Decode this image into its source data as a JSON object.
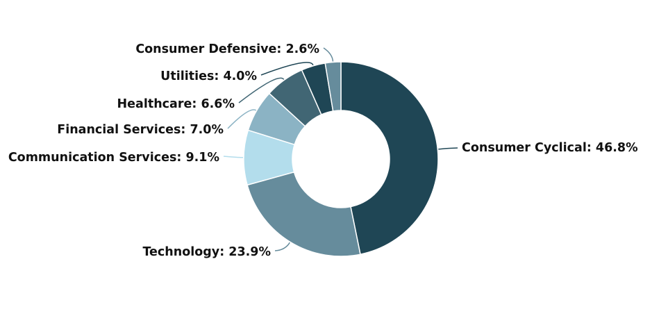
{
  "chart_data": {
    "type": "pie",
    "donut": true,
    "start_angle": "12 o'clock",
    "direction": "clockwise",
    "slices": [
      {
        "label": "Consumer Cyclical",
        "value": 46.8,
        "text": "Consumer Cyclical: 46.8%",
        "color": "#1f4655"
      },
      {
        "label": "Technology",
        "value": 23.9,
        "text": "Technology: 23.9%",
        "color": "#668c9c"
      },
      {
        "label": "Communication Services",
        "value": 9.1,
        "text": "Communication Services: 9.1%",
        "color": "#b3ddec"
      },
      {
        "label": "Financial Services",
        "value": 7.0,
        "text": "Financial Services: 7.0%",
        "color": "#8bb3c4"
      },
      {
        "label": "Healthcare",
        "value": 6.6,
        "text": "Healthcare: 6.6%",
        "color": "#416674"
      },
      {
        "label": "Utilities",
        "value": 4.0,
        "text": "Utilities: 4.0%",
        "color": "#1f4655"
      },
      {
        "label": "Consumer Defensive",
        "value": 2.6,
        "text": "Consumer Defensive: 2.6%",
        "color": "#668c9c"
      }
    ]
  }
}
